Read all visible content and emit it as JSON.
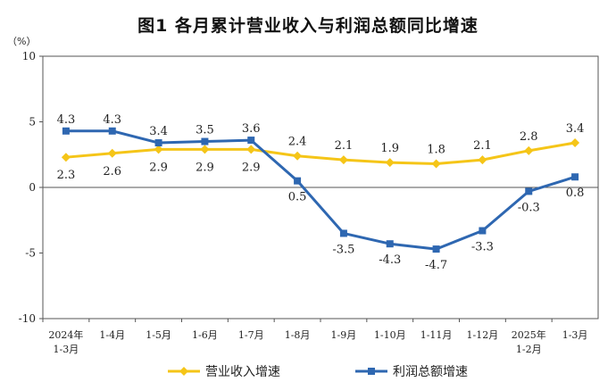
{
  "chart_data": {
    "type": "line",
    "title": "图1  各月累计营业收入与利润总额同比增速",
    "ylabel_unit": "（%）",
    "ylim": [
      -10,
      10
    ],
    "yticks": [
      -10,
      -5,
      0,
      5,
      10
    ],
    "grid": false,
    "legend_position": "bottom",
    "categories": [
      [
        "2024年",
        "1-3月"
      ],
      [
        "1-4月"
      ],
      [
        "1-5月"
      ],
      [
        "1-6月"
      ],
      [
        "1-7月"
      ],
      [
        "1-8月"
      ],
      [
        "1-9月"
      ],
      [
        "1-10月"
      ],
      [
        "1-11月"
      ],
      [
        "1-12月"
      ],
      [
        "2025年",
        "1-2月"
      ],
      [
        "1-3月"
      ]
    ],
    "series": [
      {
        "name": "营业收入增速",
        "color": "#f5c518",
        "marker": "diamond",
        "values": [
          2.3,
          2.6,
          2.9,
          2.9,
          2.9,
          2.4,
          2.1,
          1.9,
          1.8,
          2.1,
          2.8,
          3.4
        ],
        "labels": [
          "2.3",
          "2.6",
          "2.9",
          "2.9",
          "2.9",
          "2.4",
          "2.1",
          "1.9",
          "1.8",
          "2.1",
          "2.8",
          "3.4"
        ]
      },
      {
        "name": "利润总额增速",
        "color": "#2e67b1",
        "marker": "square",
        "values": [
          4.3,
          4.3,
          3.4,
          3.5,
          3.6,
          0.5,
          -3.5,
          -4.3,
          -4.7,
          -3.3,
          -0.3,
          0.8
        ],
        "labels": [
          "4.3",
          "4.3",
          "3.4",
          "3.5",
          "3.6",
          "0.5",
          "-3.5",
          "-4.3",
          "-4.7",
          "-3.3",
          "-0.3",
          "0.8"
        ]
      }
    ]
  }
}
